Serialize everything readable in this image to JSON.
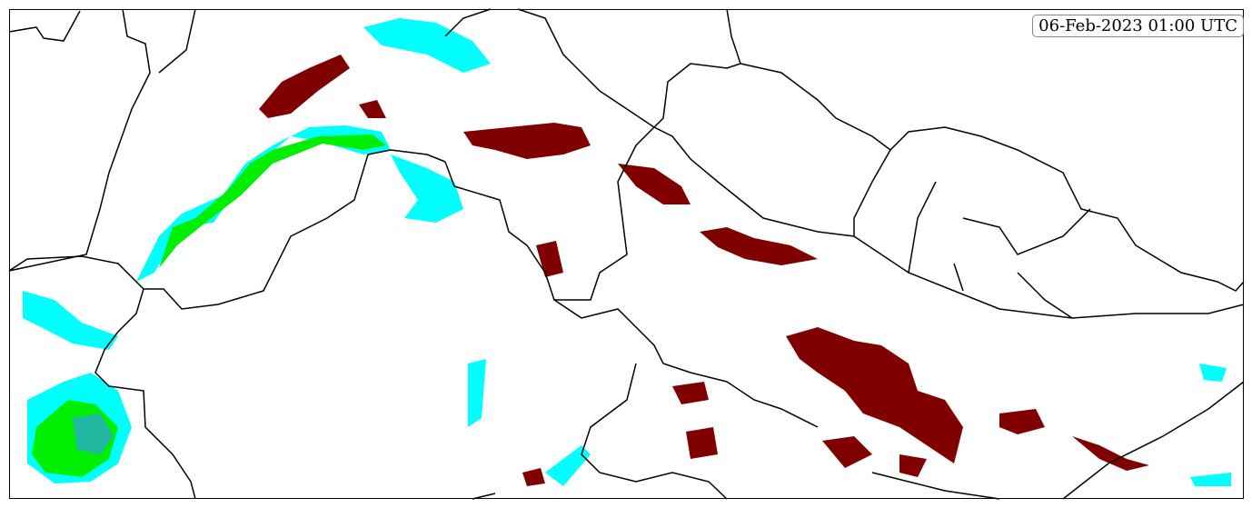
{
  "map": {
    "timestamp": "06-Feb-2023 01:00 UTC",
    "colors": {
      "heavy": "#800000",
      "moderate": "#00ee00",
      "light": "#00ffff",
      "medium": "#20b8a0",
      "trace": "#ffd700",
      "border": "#000000"
    }
  }
}
